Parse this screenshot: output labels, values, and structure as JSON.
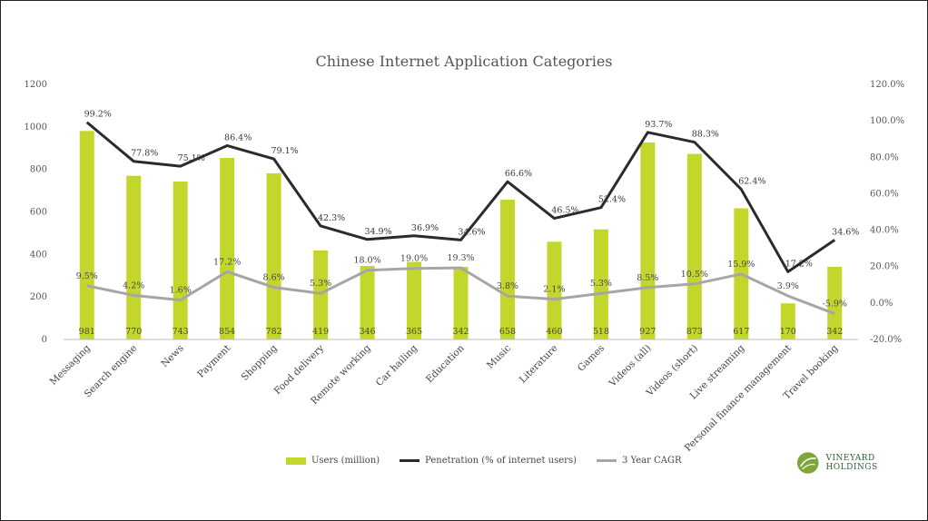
{
  "chart_data": {
    "type": "bar",
    "title": "Chinese Internet Application Categories",
    "categories": [
      "Messaging",
      "Search engine",
      "News",
      "Payment",
      "Shopping",
      "Food delivery",
      "Remote working",
      "Car hailing",
      "Education",
      "Music",
      "Literature",
      "Games",
      "Videos (all)",
      "Videos (short)",
      "Live streaming",
      "Personal finance management",
      "Travel booking"
    ],
    "series": [
      {
        "name": "Users (million)",
        "axis": "left",
        "kind": "bar",
        "color": "#c3d62c",
        "values": [
          981,
          770,
          743,
          854,
          782,
          419,
          346,
          365,
          342,
          658,
          460,
          518,
          927,
          873,
          617,
          170,
          342
        ],
        "labels": [
          "981",
          "770",
          "743",
          "854",
          "782",
          "419",
          "346",
          "365",
          "342",
          "658",
          "460",
          "518",
          "927",
          "873",
          "617",
          "170",
          "342"
        ]
      },
      {
        "name": "Penetration (% of internet users)",
        "axis": "right",
        "kind": "line",
        "color": "#2b2b2b",
        "values": [
          99.2,
          77.8,
          75.1,
          86.4,
          79.1,
          42.3,
          34.9,
          36.9,
          34.6,
          66.6,
          46.5,
          52.4,
          93.7,
          88.3,
          62.4,
          17.2,
          34.6
        ],
        "labels": [
          "99.2%",
          "77.8%",
          "75.1%",
          "86.4%",
          "79.1%",
          "42.3%",
          "34.9%",
          "36.9%",
          "34.6%",
          "66.6%",
          "46.5%",
          "52.4%",
          "93.7%",
          "88.3%",
          "62.4%",
          "17.2%",
          "34.6%"
        ]
      },
      {
        "name": "3 Year CAGR",
        "axis": "right",
        "kind": "line",
        "color": "#a6a6a6",
        "values": [
          9.5,
          4.2,
          1.6,
          17.2,
          8.6,
          5.3,
          18.0,
          19.0,
          19.3,
          3.8,
          2.1,
          5.3,
          8.5,
          10.5,
          15.9,
          3.9,
          -5.9
        ],
        "labels": [
          "9.5%",
          "4.2%",
          "1.6%",
          "17.2%",
          "8.6%",
          "5.3%",
          "18.0%",
          "19.0%",
          "19.3%",
          "3.8%",
          "2.1%",
          "5.3%",
          "8.5%",
          "10.5%",
          "15.9%",
          "3.9%",
          "-5.9%"
        ]
      }
    ],
    "y_left": {
      "min": 0,
      "max": 1200,
      "ticks": [
        "0",
        "200",
        "400",
        "600",
        "800",
        "1000",
        "1200"
      ]
    },
    "y_right": {
      "min": -20,
      "max": 120,
      "ticks": [
        "-20.0%",
        "0.0%",
        "20.0%",
        "40.0%",
        "60.0%",
        "80.0%",
        "100.0%",
        "120.0%"
      ]
    },
    "grid": false,
    "legend": "bottom"
  },
  "legend_items": [
    "Users (million)",
    "Penetration (% of internet users)",
    "3 Year CAGR"
  ],
  "logo": {
    "text": "VINEYARD HOLDINGS"
  }
}
